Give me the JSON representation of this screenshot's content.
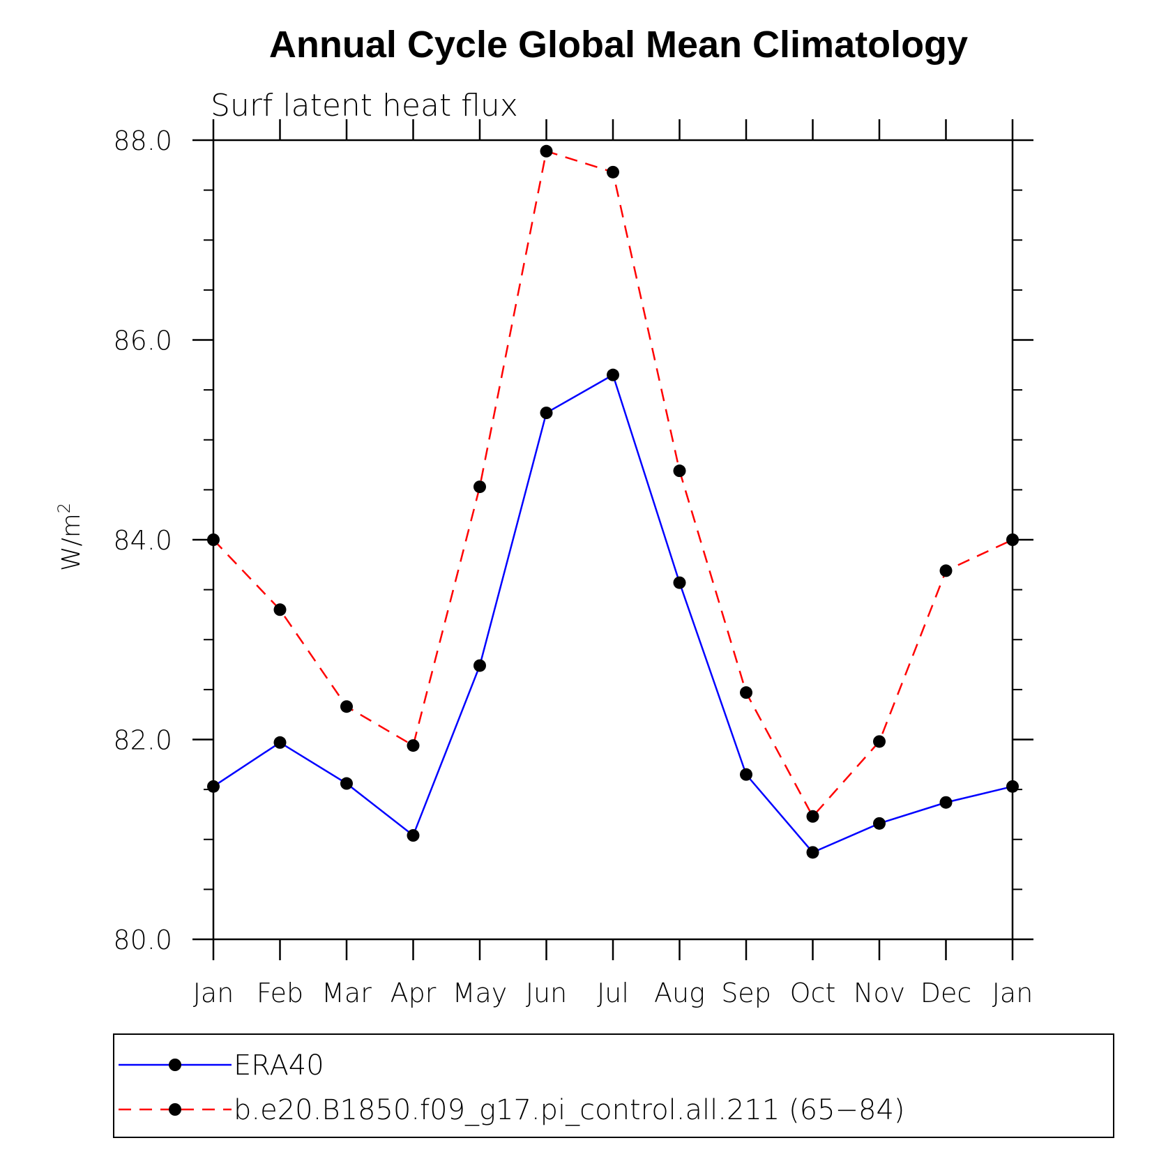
{
  "chart_data": {
    "type": "line",
    "title": "Annual Cycle Global Mean Climatology",
    "subtitle": "Surf latent heat flux",
    "ylabel": "W/m",
    "ylabel_superscript": "2",
    "xlabel": "",
    "categories": [
      "Jan",
      "Feb",
      "Mar",
      "Apr",
      "May",
      "Jun",
      "Jul",
      "Aug",
      "Sep",
      "Oct",
      "Nov",
      "Dec",
      "Jan"
    ],
    "ylim": [
      80.0,
      88.0
    ],
    "yticks": [
      "80.0",
      "82.0",
      "84.0",
      "86.0",
      "88.0"
    ],
    "grid": false,
    "legend_position": "bottom",
    "series": [
      {
        "name": "ERA40",
        "color": "#0000ff",
        "dash": "solid",
        "marker": "filled-circle",
        "values": [
          81.53,
          81.97,
          81.56,
          81.04,
          82.74,
          85.27,
          85.65,
          83.57,
          81.65,
          80.87,
          81.16,
          81.37,
          81.53
        ]
      },
      {
        "name": "b.e20.B1850.f09_g17.pi_control.all.211 (65−84)",
        "color": "#ff0000",
        "dash": "dashed",
        "marker": "filled-circle",
        "values": [
          84.0,
          83.3,
          82.33,
          81.94,
          84.53,
          87.89,
          87.68,
          84.69,
          82.47,
          81.23,
          81.98,
          83.69,
          84.0
        ]
      }
    ]
  }
}
